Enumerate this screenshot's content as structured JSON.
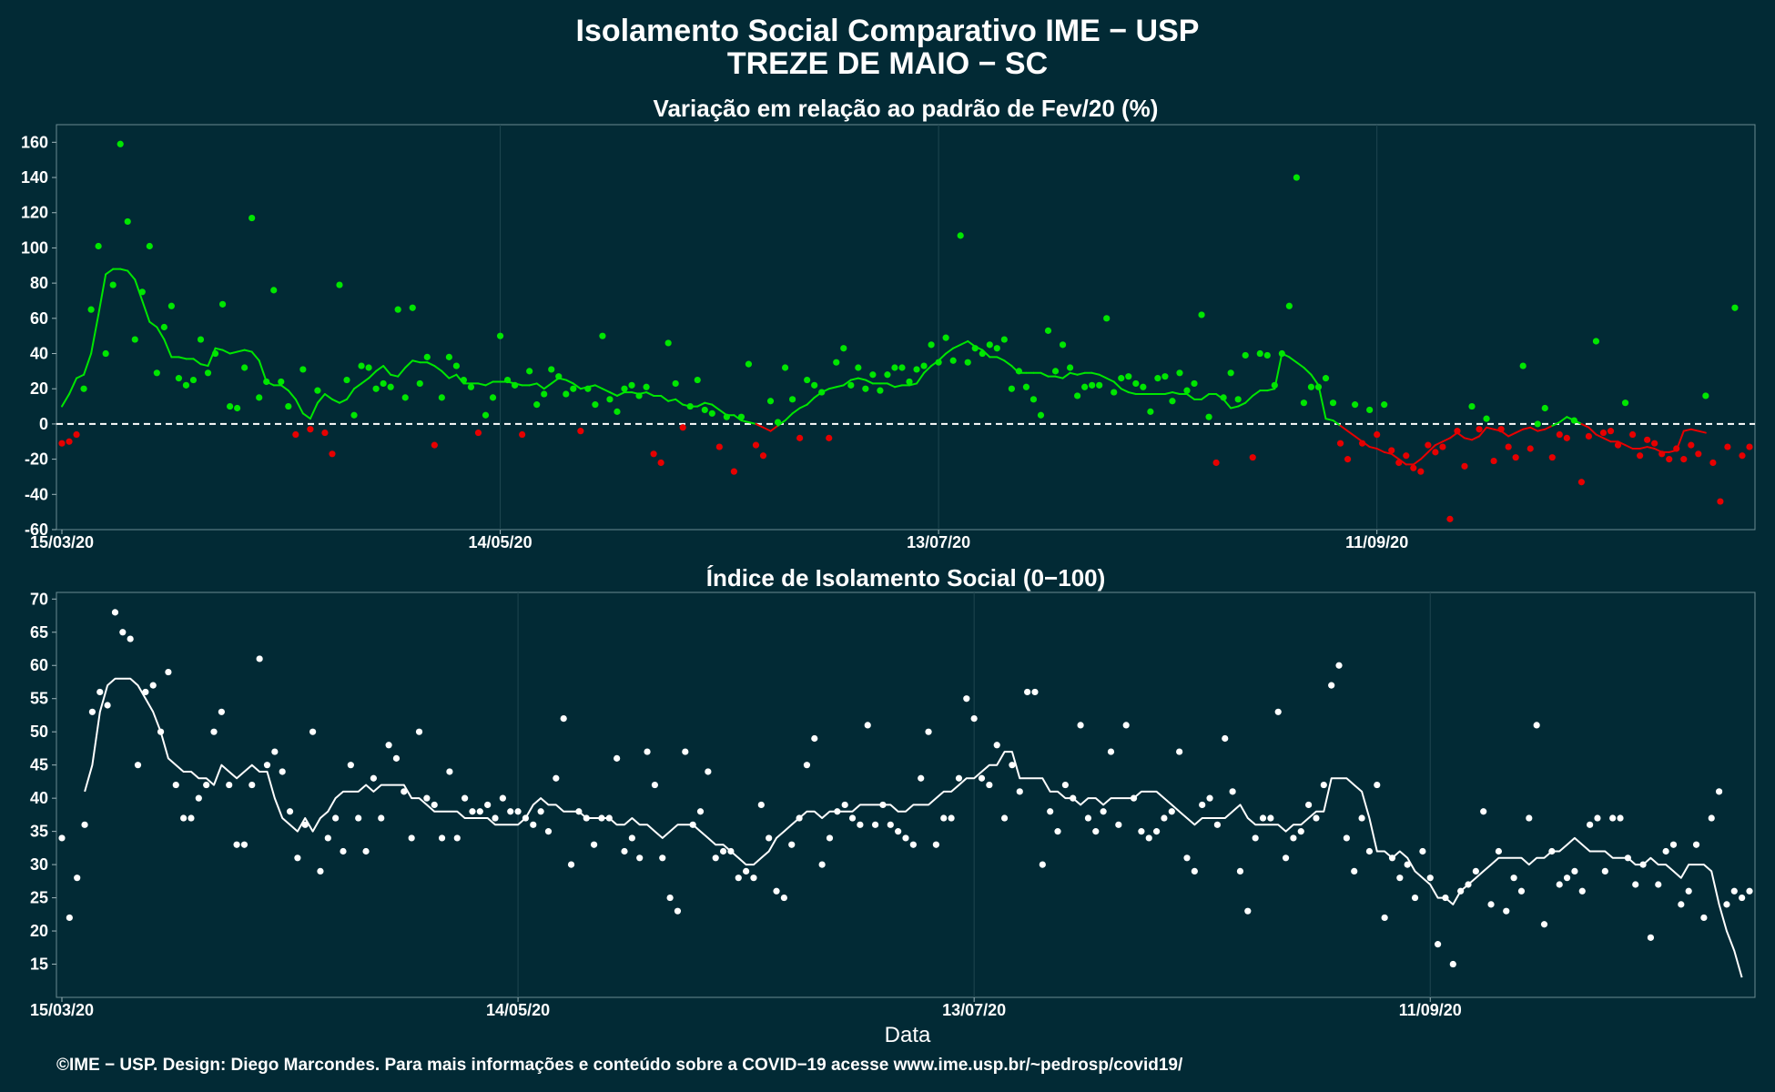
{
  "header": {
    "title": "Isolamento Social Comparativo IME − USP",
    "subtitle": "TREZE DE MAIO − SC"
  },
  "footer": {
    "credits": "©IME − USP. Design: Diego Marcondes. Para mais informações e conteúdo sobre a COVID−19 acesse www.ime.usp.br/~pedrosp/covid19/"
  },
  "colors": {
    "background": "#022a35",
    "above_baseline": "#00e600",
    "below_baseline": "#e60000",
    "index_series": "#ffffff",
    "baseline": "#ffffff"
  },
  "chart_data": [
    {
      "type": "scatter",
      "title": "Variação em relação ao padrão de Fev/20 (%)",
      "xlabel": "",
      "ylabel": "",
      "x_start": "15/03/20",
      "x_end": "31/10/20",
      "x_ticks": [
        "15/03/20",
        "14/05/20",
        "13/07/20",
        "11/09/20"
      ],
      "ylim": [
        -60,
        170
      ],
      "y_ticks": [
        -60,
        -40,
        -20,
        0,
        20,
        40,
        60,
        80,
        100,
        120,
        140,
        160
      ],
      "reference_line": 0,
      "grid": true,
      "series": [
        {
          "kind": "daily_points",
          "values": [
            -11,
            -10,
            -6,
            20,
            65,
            101,
            40,
            79,
            159,
            115,
            48,
            75,
            101,
            29,
            55,
            67,
            26,
            22,
            25,
            48,
            29,
            40,
            68,
            10,
            9,
            32,
            117,
            15,
            24,
            76,
            24,
            10,
            -6,
            31,
            -3,
            19,
            -5,
            -17,
            79,
            25,
            5,
            33,
            32,
            20,
            23,
            21,
            65,
            15,
            66,
            23,
            38,
            -12,
            15,
            38,
            33,
            25,
            21,
            -5,
            5,
            15,
            50,
            25,
            22,
            -6,
            30,
            11,
            17,
            31,
            27,
            17,
            20,
            -4,
            20,
            11,
            50,
            14,
            7,
            20,
            22,
            16,
            21,
            -17,
            -22,
            46,
            23,
            -2,
            10,
            25,
            8,
            6,
            -13,
            4,
            -27,
            4,
            34,
            -12,
            -18,
            13,
            1,
            32,
            14,
            -8,
            25,
            22,
            18,
            -8,
            35,
            43,
            22,
            32,
            20,
            28,
            19,
            28,
            32,
            32,
            24,
            31,
            33,
            45,
            35,
            49,
            36,
            107,
            35,
            43,
            40,
            45,
            43,
            48,
            20,
            30,
            21,
            14,
            5,
            53,
            30,
            45,
            32,
            16,
            21,
            22,
            22,
            60,
            18,
            26,
            27,
            23,
            21,
            7,
            26,
            27,
            13,
            29,
            19,
            23,
            62,
            4,
            -22,
            15,
            29,
            14,
            39,
            -19,
            40,
            39,
            22,
            40,
            67,
            140,
            12,
            21,
            21,
            26,
            12,
            -11,
            -20,
            11,
            -11,
            8,
            -6,
            11,
            -15,
            -22,
            -18,
            -25,
            -27,
            -12,
            -16,
            -13,
            -54,
            -4,
            -24,
            10,
            -3,
            3,
            -21,
            -3,
            -13,
            -19,
            33,
            -14,
            0,
            9,
            -19,
            -6,
            -8,
            2,
            -33,
            -7,
            47,
            -5,
            -4,
            -12,
            12,
            -6,
            -18,
            -9,
            -11,
            -17,
            -20,
            -14,
            -20,
            -12,
            -17,
            16,
            -22,
            -44,
            -13,
            66,
            -18,
            -13
          ]
        },
        {
          "kind": "moving_average",
          "values": [
            10,
            17,
            26,
            28,
            40,
            62,
            85,
            88,
            88,
            87,
            82,
            70,
            58,
            55,
            48,
            38,
            38,
            37,
            37,
            34,
            33,
            43,
            42,
            40,
            41,
            42,
            41,
            36,
            24,
            22,
            22,
            19,
            14,
            6,
            3,
            12,
            17,
            14,
            12,
            14,
            20,
            23,
            26,
            30,
            33,
            28,
            27,
            32,
            36,
            35,
            35,
            33,
            30,
            26,
            28,
            23,
            23,
            23,
            22,
            24,
            24,
            24,
            23,
            22,
            22,
            23,
            20,
            23,
            26,
            25,
            23,
            20,
            21,
            22,
            20,
            18,
            16,
            18,
            18,
            17,
            18,
            16,
            16,
            13,
            14,
            11,
            10,
            10,
            12,
            11,
            8,
            5,
            5,
            2,
            1,
            0,
            -2,
            -4,
            -1,
            2,
            6,
            9,
            11,
            15,
            18,
            20,
            21,
            22,
            25,
            26,
            25,
            23,
            23,
            23,
            21,
            22,
            22,
            23,
            29,
            33,
            36,
            40,
            43,
            45,
            47,
            44,
            42,
            38,
            38,
            36,
            33,
            29,
            29,
            29,
            29,
            27,
            27,
            26,
            29,
            28,
            29,
            29,
            28,
            26,
            24,
            20,
            18,
            17,
            17,
            17,
            17,
            17,
            18,
            17,
            17,
            14,
            14,
            17,
            17,
            14,
            9,
            10,
            12,
            16,
            19,
            19,
            20,
            40,
            38,
            35,
            32,
            28,
            22,
            3,
            2,
            -1,
            -4,
            -7,
            -10,
            -13,
            -14,
            -16,
            -17,
            -20,
            -23,
            -23,
            -20,
            -16,
            -12,
            -10,
            -8,
            -5,
            -8,
            -9,
            -7,
            -2,
            -3,
            -4,
            -7,
            -5,
            -3,
            -2,
            -4,
            -3,
            -1,
            1,
            4,
            2,
            0,
            -2,
            -6,
            -8,
            -10,
            -10,
            -12,
            -14,
            -14,
            -13,
            -14,
            -16,
            -16,
            -15,
            -4,
            -3,
            -4,
            -5
          ]
        }
      ]
    },
    {
      "type": "scatter",
      "title": "Índice de Isolamento Social (0−100)",
      "xlabel": "Data",
      "ylabel": "",
      "x_start": "15/03/20",
      "x_end": "31/10/20",
      "x_ticks": [
        "15/03/20",
        "14/05/20",
        "13/07/20",
        "11/09/20"
      ],
      "ylim": [
        10,
        71
      ],
      "y_ticks": [
        15,
        20,
        25,
        30,
        35,
        40,
        45,
        50,
        55,
        60,
        65,
        70
      ],
      "grid": true,
      "series": [
        {
          "kind": "daily_points",
          "values": [
            34,
            22,
            28,
            36,
            53,
            56,
            54,
            68,
            65,
            64,
            45,
            56,
            57,
            50,
            59,
            42,
            37,
            37,
            40,
            42,
            50,
            53,
            42,
            33,
            33,
            42,
            61,
            45,
            47,
            44,
            38,
            31,
            36,
            50,
            29,
            34,
            37,
            32,
            45,
            37,
            32,
            43,
            37,
            48,
            46,
            41,
            34,
            50,
            40,
            39,
            34,
            44,
            34,
            40,
            38,
            38,
            39,
            37,
            40,
            38,
            38,
            37,
            36,
            38,
            35,
            43,
            52,
            30,
            38,
            37,
            33,
            37,
            37,
            46,
            32,
            34,
            31,
            47,
            42,
            31,
            25,
            23,
            47,
            36,
            38,
            44,
            31,
            32,
            32,
            28,
            29,
            28,
            39,
            34,
            26,
            25,
            33,
            37,
            45,
            49,
            30,
            34,
            38,
            39,
            37,
            36,
            51,
            36,
            39,
            36,
            35,
            34,
            33,
            43,
            50,
            33,
            37,
            37,
            43,
            55,
            52,
            43,
            42,
            48,
            37,
            45,
            41,
            56,
            56,
            30,
            38,
            35,
            42,
            40,
            51,
            37,
            35,
            38,
            47,
            36,
            51,
            40,
            35,
            34,
            35,
            37,
            38,
            47,
            31,
            29,
            39,
            40,
            36,
            49,
            41,
            29,
            23,
            34,
            37,
            37,
            53,
            31,
            34,
            35,
            39,
            37,
            42,
            57,
            60,
            34,
            29,
            37,
            32,
            42,
            22,
            31,
            28,
            30,
            25,
            32,
            28,
            18,
            25,
            15,
            26,
            27,
            29,
            38,
            24,
            32,
            23,
            28,
            26,
            37,
            51,
            21,
            32,
            27,
            28,
            29,
            26,
            36,
            37,
            29,
            37,
            37,
            31,
            27,
            30,
            19,
            27,
            32,
            33,
            24,
            26,
            33,
            22,
            37,
            41,
            24,
            26,
            25,
            26
          ]
        },
        {
          "kind": "moving_average",
          "values": [
            null,
            null,
            null,
            41,
            45,
            53,
            57,
            58,
            58,
            58,
            57,
            55,
            53,
            50,
            46,
            45,
            44,
            44,
            43,
            43,
            42,
            45,
            44,
            43,
            44,
            45,
            44,
            44,
            40,
            37,
            36,
            35,
            37,
            35,
            37,
            38,
            40,
            41,
            41,
            41,
            42,
            41,
            42,
            42,
            42,
            42,
            40,
            40,
            39,
            38,
            38,
            38,
            38,
            37,
            37,
            37,
            37,
            36,
            36,
            36,
            36,
            37,
            39,
            40,
            39,
            39,
            38,
            38,
            38,
            37,
            37,
            37,
            37,
            36,
            36,
            37,
            36,
            36,
            35,
            34,
            35,
            36,
            36,
            36,
            35,
            34,
            33,
            33,
            32,
            31,
            30,
            30,
            31,
            32,
            34,
            35,
            36,
            37,
            38,
            38,
            37,
            38,
            38,
            38,
            38,
            39,
            39,
            39,
            39,
            39,
            38,
            38,
            39,
            39,
            39,
            40,
            41,
            41,
            42,
            43,
            43,
            44,
            45,
            45,
            47,
            47,
            43,
            43,
            43,
            43,
            41,
            41,
            40,
            40,
            39,
            40,
            40,
            39,
            40,
            40,
            40,
            40,
            41,
            41,
            41,
            40,
            39,
            38,
            37,
            36,
            37,
            37,
            37,
            37,
            38,
            39,
            37,
            36,
            36,
            36,
            36,
            35,
            36,
            36,
            37,
            38,
            38,
            43,
            43,
            43,
            42,
            41,
            37,
            32,
            32,
            31,
            32,
            31,
            29,
            28,
            27,
            25,
            25,
            24,
            26,
            27,
            28,
            29,
            30,
            31,
            31,
            31,
            31,
            30,
            31,
            31,
            32,
            32,
            33,
            34,
            33,
            32,
            32,
            32,
            31,
            31,
            31,
            30,
            30,
            31,
            30,
            30,
            29,
            28,
            30,
            30,
            30,
            29,
            24,
            20,
            17,
            13
          ]
        }
      ]
    }
  ]
}
